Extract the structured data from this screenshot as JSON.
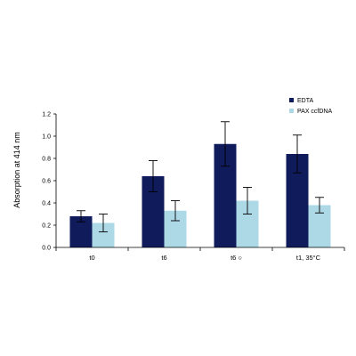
{
  "chart_data": {
    "type": "bar",
    "categories": [
      "t0",
      "t6",
      "t6 ○",
      "t1, 35°C"
    ],
    "series": [
      {
        "name": "EDTA",
        "color": "#0f1b5b",
        "values": [
          0.28,
          0.64,
          0.93,
          0.84
        ],
        "errors": [
          0.05,
          0.14,
          0.2,
          0.17
        ]
      },
      {
        "name": "PAX ccfDNA",
        "color": "#add8e6",
        "values": [
          0.22,
          0.33,
          0.42,
          0.38
        ],
        "errors": [
          0.08,
          0.09,
          0.12,
          0.07
        ]
      }
    ],
    "ylabel": "Absorption at 414 nm",
    "xlabel": "",
    "ylim": [
      0,
      1.2
    ],
    "yticks": [
      "0.0",
      "0.2",
      "0.4",
      "0.6",
      "0.8",
      "1.0",
      "1.2"
    ],
    "grid": false,
    "legend_position": "top-right"
  }
}
